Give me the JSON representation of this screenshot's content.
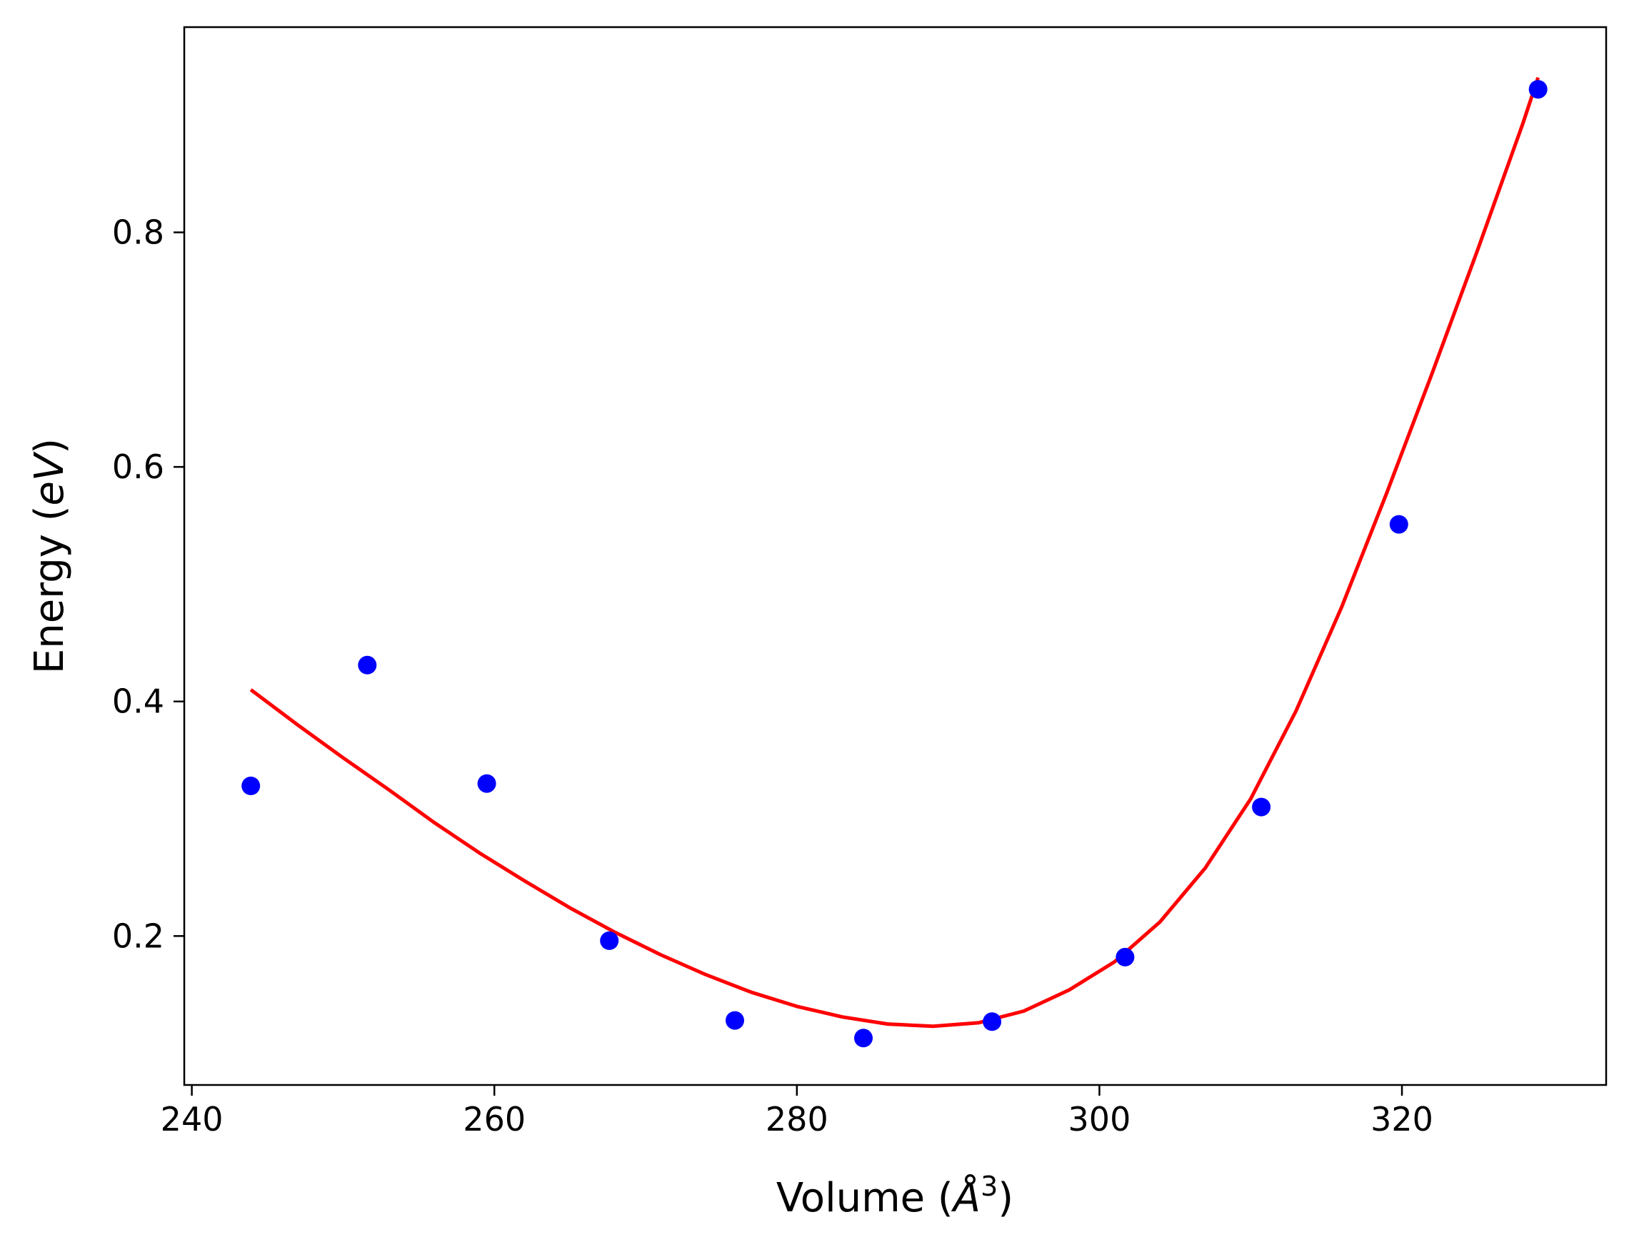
{
  "chart_data": {
    "type": "scatter",
    "title": "",
    "xlabel": "Volume (Å³)",
    "xlabel_parts": {
      "prefix": "Volume (",
      "symbol": "Å",
      "exponent": "3",
      "suffix": ")"
    },
    "ylabel": "Energy (eV)",
    "ylabel_parts": {
      "prefix": "Energy (",
      "unit": "eV",
      "suffix": ")"
    },
    "xlim": [
      239.5,
      333.5
    ],
    "ylim": [
      0.073,
      0.975
    ],
    "xticks": [
      240,
      260,
      280,
      300,
      320
    ],
    "xtick_labels": [
      "240",
      "260",
      "280",
      "300",
      "320"
    ],
    "yticks": [
      0.2,
      0.4,
      0.6,
      0.8
    ],
    "ytick_labels": [
      "0.2",
      "0.4",
      "0.6",
      "0.8"
    ],
    "grid": false,
    "legend": null,
    "series": [
      {
        "kind": "scatter",
        "color": "#0000ff",
        "x": [
          243.9,
          251.6,
          259.5,
          267.6,
          275.9,
          284.4,
          292.9,
          301.7,
          310.7,
          319.8,
          329.0
        ],
        "y": [
          0.328,
          0.431,
          0.33,
          0.196,
          0.128,
          0.113,
          0.127,
          0.182,
          0.31,
          0.551,
          0.922
        ]
      },
      {
        "kind": "line",
        "color": "#ff0000",
        "x": [
          243.9,
          247,
          250,
          253,
          256,
          259,
          262,
          265,
          268,
          271,
          274,
          277,
          280,
          283,
          286,
          289,
          292,
          295,
          298,
          301,
          304,
          307,
          310,
          313,
          316,
          319,
          322,
          325,
          328,
          329.0
        ],
        "y": [
          0.41,
          0.38,
          0.352,
          0.325,
          0.297,
          0.271,
          0.247,
          0.224,
          0.203,
          0.184,
          0.167,
          0.152,
          0.14,
          0.131,
          0.125,
          0.123,
          0.126,
          0.136,
          0.154,
          0.178,
          0.212,
          0.258,
          0.317,
          0.392,
          0.48,
          0.578,
          0.68,
          0.785,
          0.893,
          0.932
        ]
      }
    ]
  }
}
